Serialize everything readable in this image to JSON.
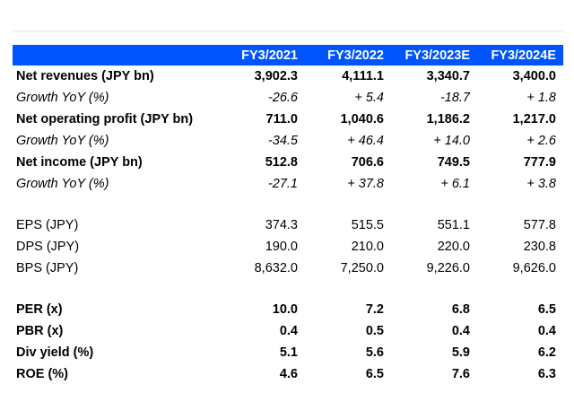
{
  "header": [
    "",
    "FY3/2021",
    "FY3/2022",
    "FY3/2023E",
    "FY3/2024E"
  ],
  "rows": [
    {
      "label": "Net revenues (JPY bn)",
      "values": [
        "3,902.3",
        "4,111.1",
        "3,340.7",
        "3,400.0"
      ],
      "style": "bold"
    },
    {
      "label": "Growth YoY (%)",
      "values": [
        "-26.6",
        "+ 5.4",
        "-18.7",
        "+ 1.8"
      ],
      "style": "italic"
    },
    {
      "label": "Net operating profit (JPY bn)",
      "values": [
        "711.0",
        "1,040.6",
        "1,186.2",
        "1,217.0"
      ],
      "style": "bold"
    },
    {
      "label": "Growth YoY (%)",
      "values": [
        "-34.5",
        "+ 46.4",
        "+ 14.0",
        "+ 2.6"
      ],
      "style": "italic"
    },
    {
      "label": "Net income (JPY bn)",
      "values": [
        "512.8",
        "706.6",
        "749.5",
        "777.9"
      ],
      "style": "bold"
    },
    {
      "label": "Growth YoY (%)",
      "values": [
        "-27.1",
        "+ 37.8",
        "+ 6.1",
        "+ 3.8"
      ],
      "style": "italic"
    },
    {
      "label": "",
      "values": [
        "",
        "",
        "",
        ""
      ],
      "style": "spacer"
    },
    {
      "label": "EPS (JPY)",
      "values": [
        "374.3",
        "515.5",
        "551.1",
        "577.8"
      ],
      "style": "normal"
    },
    {
      "label": "DPS (JPY)",
      "values": [
        "190.0",
        "210.0",
        "220.0",
        "230.8"
      ],
      "style": "normal"
    },
    {
      "label": "BPS (JPY)",
      "values": [
        "8,632.0",
        "7,250.0",
        "9,226.0",
        "9,626.0"
      ],
      "style": "normal"
    },
    {
      "label": "",
      "values": [
        "",
        "",
        "",
        ""
      ],
      "style": "spacer"
    },
    {
      "label": "PER (x)",
      "values": [
        "10.0",
        "7.2",
        "6.8",
        "6.5"
      ],
      "style": "bold"
    },
    {
      "label": "PBR (x)",
      "values": [
        "0.4",
        "0.5",
        "0.4",
        "0.4"
      ],
      "style": "bold"
    },
    {
      "label": "Div yield (%)",
      "values": [
        "5.1",
        "5.6",
        "5.9",
        "6.2"
      ],
      "style": "bold"
    },
    {
      "label": "ROE (%)",
      "values": [
        "4.6",
        "6.5",
        "7.6",
        "6.3"
      ],
      "style": "bold"
    }
  ]
}
